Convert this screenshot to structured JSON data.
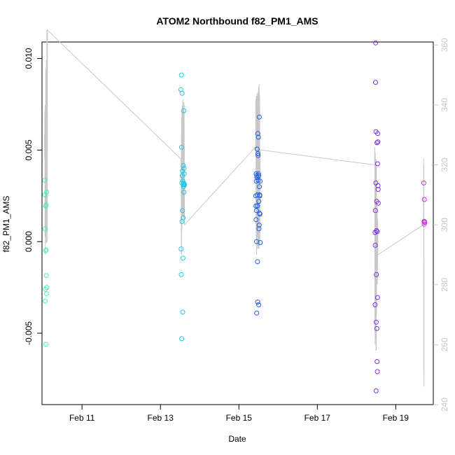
{
  "chart_data": {
    "type": "scatter",
    "title": "ATOM2 Northbound f82_PM1_AMS",
    "xlabel": "Date",
    "ylabel": "f82_PM1_AMS",
    "x_range_days": [
      "2024-02-09T23:30",
      "2024-02-19T23:00"
    ],
    "x_ticks": [
      {
        "date": "2024-02-11T00:00",
        "label": "Feb 11"
      },
      {
        "date": "2024-02-13T00:00",
        "label": "Feb 13"
      },
      {
        "date": "2024-02-15T00:00",
        "label": "Feb 15"
      },
      {
        "date": "2024-02-17T00:00",
        "label": "Feb 17"
      },
      {
        "date": "2024-02-19T00:00",
        "label": "Feb 19"
      }
    ],
    "ylim": [
      -0.0089,
      0.0109
    ],
    "y_ticks": [
      {
        "value": -0.005,
        "label": "-0.005"
      },
      {
        "value": 0.0,
        "label": "0.000"
      },
      {
        "value": 0.005,
        "label": "0.005"
      },
      {
        "value": 0.01,
        "label": "0.010"
      }
    ],
    "secondary_axis": {
      "ylim": [
        240,
        361
      ],
      "ticks": [
        {
          "value": 240,
          "label": "240"
        },
        {
          "value": 260,
          "label": "260"
        },
        {
          "value": 280,
          "label": "280"
        },
        {
          "value": 300,
          "label": "300"
        },
        {
          "value": 320,
          "label": "320"
        },
        {
          "value": 340,
          "label": "340"
        },
        {
          "value": 360,
          "label": "360"
        }
      ],
      "color": "#c8c8c8"
    },
    "grid": false,
    "series": [
      {
        "color": "#3ff5c0",
        "points": [
          [
            "2024-02-10T01:07",
            0.00335
          ],
          [
            "2024-02-10T01:12",
            0.00255
          ],
          [
            "2024-02-10T01:18",
            0.0007
          ],
          [
            "2024-02-10T01:25",
            -0.00325
          ],
          [
            "2024-02-10T01:32",
            -0.0026
          ],
          [
            "2024-02-10T01:39",
            -0.0005
          ],
          [
            "2024-02-10T01:45",
            0.00195
          ],
          [
            "2024-02-10T01:51",
            -0.0056
          ],
          [
            "2024-02-10T01:58",
            0.002
          ],
          [
            "2024-02-10T02:04",
            -0.00045
          ],
          [
            "2024-02-10T02:10",
            -0.00185
          ],
          [
            "2024-02-10T02:16",
            -0.00285
          ],
          [
            "2024-02-10T02:22",
            0.0027
          ],
          [
            "2024-02-10T02:28",
            -0.0025
          ]
        ]
      },
      {
        "color": "#1fc8e6",
        "points": [
          [
            "2024-02-13T12:30",
            0.0083
          ],
          [
            "2024-02-13T12:40",
            -0.0004
          ],
          [
            "2024-02-13T12:45",
            -0.0018
          ],
          [
            "2024-02-13T12:52",
            0.0091
          ],
          [
            "2024-02-13T12:57",
            0.00515
          ],
          [
            "2024-02-13T13:02",
            -0.0053
          ],
          [
            "2024-02-13T13:07",
            0.0032
          ],
          [
            "2024-02-13T13:12",
            0.0011
          ],
          [
            "2024-02-13T13:17",
            0.0081
          ],
          [
            "2024-02-13T13:22",
            0.0036
          ],
          [
            "2024-02-13T13:27",
            0.00385
          ],
          [
            "2024-02-13T13:32",
            0.0017
          ],
          [
            "2024-02-13T13:37",
            -0.00385
          ],
          [
            "2024-02-13T13:42",
            0.0033
          ],
          [
            "2024-02-13T13:47",
            -0.0009
          ],
          [
            "2024-02-13T13:52",
            0.0013
          ],
          [
            "2024-02-13T13:57",
            0.00415
          ],
          [
            "2024-02-13T14:02",
            0.0031
          ],
          [
            "2024-02-13T14:07",
            0.003
          ],
          [
            "2024-02-13T14:12",
            0.0032
          ],
          [
            "2024-02-13T14:17",
            0.00715
          ],
          [
            "2024-02-13T14:22",
            0.0027
          ],
          [
            "2024-02-13T14:27",
            0.004
          ],
          [
            "2024-02-13T14:32",
            0.0037
          ],
          [
            "2024-02-13T14:37",
            0.00315
          ],
          [
            "2024-02-13T14:42",
            0.0031
          ]
        ]
      },
      {
        "color": "#1f5ee6",
        "points": [
          [
            "2024-02-15T10:20",
            0.0025
          ],
          [
            "2024-02-15T10:25",
            0.00195
          ],
          [
            "2024-02-15T10:30",
            0.0012
          ],
          [
            "2024-02-15T10:35",
            0.0037
          ],
          [
            "2024-02-15T10:40",
            0.0033
          ],
          [
            "2024-02-15T10:45",
            0.0017
          ],
          [
            "2024-02-15T10:50",
            0.0
          ],
          [
            "2024-02-15T10:55",
            -0.0039
          ],
          [
            "2024-02-15T11:00",
            0.0036
          ],
          [
            "2024-02-15T11:05",
            0.0035
          ],
          [
            "2024-02-15T11:10",
            0.00505
          ],
          [
            "2024-02-15T11:15",
            0.00255
          ],
          [
            "2024-02-15T11:20",
            0.00195
          ],
          [
            "2024-02-15T11:25",
            -0.0011
          ],
          [
            "2024-02-15T11:30",
            -0.0033
          ],
          [
            "2024-02-15T11:35",
            0.0059
          ],
          [
            "2024-02-15T11:40",
            0.0048
          ],
          [
            "2024-02-15T11:45",
            0.0047
          ],
          [
            "2024-02-15T11:50",
            0.00335
          ],
          [
            "2024-02-15T11:55",
            0.0057
          ],
          [
            "2024-02-15T12:00",
            0.0037
          ],
          [
            "2024-02-15T12:05",
            -0.00345
          ],
          [
            "2024-02-15T12:10",
            0.0036
          ],
          [
            "2024-02-15T12:15",
            0.0022
          ],
          [
            "2024-02-15T12:20",
            0.0007
          ],
          [
            "2024-02-15T12:25",
            0.0009
          ],
          [
            "2024-02-15T12:30",
            0.0068
          ],
          [
            "2024-02-15T12:35",
            0.003
          ],
          [
            "2024-02-15T12:40",
            0.00155
          ],
          [
            "2024-02-15T12:45",
            0.00255
          ],
          [
            "2024-02-15T12:50",
            0.0025
          ],
          [
            "2024-02-15T12:55",
            0.0015
          ],
          [
            "2024-02-15T13:00",
            0.0033
          ],
          [
            "2024-02-15T13:05",
            -5e-05
          ]
        ]
      },
      {
        "color": "#7f2fe6",
        "points": [
          [
            "2024-02-18T11:20",
            0.0005
          ],
          [
            "2024-02-18T11:25",
            -0.00345
          ],
          [
            "2024-02-18T11:30",
            -0.0002
          ],
          [
            "2024-02-18T11:35",
            0.0017
          ],
          [
            "2024-02-18T11:40",
            0.0087
          ],
          [
            "2024-02-18T11:45",
            0.01085
          ],
          [
            "2024-02-18T11:50",
            0.0032
          ],
          [
            "2024-02-18T11:55",
            0.006
          ],
          [
            "2024-02-18T12:00",
            -0.00815
          ],
          [
            "2024-02-18T12:05",
            -0.0044
          ],
          [
            "2024-02-18T12:10",
            -0.0018
          ],
          [
            "2024-02-18T12:15",
            0.0006
          ],
          [
            "2024-02-18T12:20",
            0.0022
          ],
          [
            "2024-02-18T12:25",
            -0.00475
          ],
          [
            "2024-02-18T12:30",
            0.0054
          ],
          [
            "2024-02-18T12:35",
            -0.00655
          ],
          [
            "2024-02-18T12:40",
            0.00055
          ],
          [
            "2024-02-18T12:45",
            -0.0071
          ],
          [
            "2024-02-18T12:50",
            -0.00305
          ],
          [
            "2024-02-18T12:55",
            0.00425
          ],
          [
            "2024-02-18T13:00",
            0.0059
          ],
          [
            "2024-02-18T13:05",
            0.00545
          ],
          [
            "2024-02-18T13:10",
            0.00305
          ],
          [
            "2024-02-18T13:15",
            0.00285
          ],
          [
            "2024-02-18T13:20",
            0.0021
          ]
        ]
      },
      {
        "color": "#c832e6",
        "points": [
          [
            "2024-02-19T17:10",
            0.0032
          ],
          [
            "2024-02-19T17:20",
            0.0011
          ],
          [
            "2024-02-19T17:25",
            0.00095
          ],
          [
            "2024-02-19T17:30",
            0.0023
          ],
          [
            "2024-02-19T17:35",
            0.0011
          ],
          [
            "2024-02-19T17:40",
            0.00105
          ],
          [
            "2024-02-19T17:45",
            0.00105
          ]
        ]
      }
    ],
    "secondary_line": {
      "color": "#c8c8c8",
      "points": [
        [
          "2024-02-10T01:00",
          330
        ],
        [
          "2024-02-10T01:10",
          322
        ],
        [
          "2024-02-10T01:15",
          338
        ],
        [
          "2024-02-10T01:20",
          296
        ],
        [
          "2024-02-10T01:25",
          300
        ],
        [
          "2024-02-10T01:30",
          340
        ],
        [
          "2024-02-10T01:35",
          290
        ],
        [
          "2024-02-10T01:40",
          318
        ],
        [
          "2024-02-10T01:45",
          302
        ],
        [
          "2024-02-10T01:50",
          352
        ],
        [
          "2024-02-10T01:55",
          296
        ],
        [
          "2024-02-10T02:00",
          330
        ],
        [
          "2024-02-10T02:05",
          294
        ],
        [
          "2024-02-10T02:10",
          355
        ],
        [
          "2024-02-10T02:15",
          300
        ],
        [
          "2024-02-10T02:20",
          320
        ],
        [
          "2024-02-10T02:25",
          298
        ],
        [
          "2024-02-10T02:30",
          365
        ],
        [
          "2024-02-10T02:35",
          294
        ],
        [
          "2024-02-10T02:40",
          330
        ],
        [
          "2024-02-10T02:45",
          298
        ],
        [
          "2024-02-10T02:50",
          365
        ],
        [
          "2024-02-13T12:30",
          322
        ],
        [
          "2024-02-13T12:40",
          320
        ],
        [
          "2024-02-13T12:45",
          292
        ],
        [
          "2024-02-13T12:50",
          330
        ],
        [
          "2024-02-13T12:55",
          290
        ],
        [
          "2024-02-13T13:00",
          336
        ],
        [
          "2024-02-13T13:05",
          298
        ],
        [
          "2024-02-13T13:10",
          339
        ],
        [
          "2024-02-13T13:15",
          301
        ],
        [
          "2024-02-13T13:20",
          339
        ],
        [
          "2024-02-13T13:25",
          303
        ],
        [
          "2024-02-13T13:30",
          340
        ],
        [
          "2024-02-13T13:35",
          303
        ],
        [
          "2024-02-13T13:40",
          342
        ],
        [
          "2024-02-13T13:45",
          303
        ],
        [
          "2024-02-13T13:50",
          341
        ],
        [
          "2024-02-13T13:55",
          304
        ],
        [
          "2024-02-13T14:00",
          340
        ],
        [
          "2024-02-13T14:05",
          302
        ],
        [
          "2024-02-13T14:10",
          340
        ],
        [
          "2024-02-13T14:15",
          302
        ],
        [
          "2024-02-13T14:20",
          341
        ],
        [
          "2024-02-13T14:25",
          303
        ],
        [
          "2024-02-13T14:30",
          340
        ],
        [
          "2024-02-13T14:35",
          302
        ],
        [
          "2024-02-13T14:40",
          326
        ],
        [
          "2024-02-13T14:45",
          300
        ],
        [
          "2024-02-15T10:15",
          326
        ],
        [
          "2024-02-15T10:25",
          342
        ],
        [
          "2024-02-15T10:30",
          298
        ],
        [
          "2024-02-15T10:35",
          340
        ],
        [
          "2024-02-15T10:40",
          296
        ],
        [
          "2024-02-15T10:45",
          343
        ],
        [
          "2024-02-15T10:50",
          290
        ],
        [
          "2024-02-15T10:55",
          342
        ],
        [
          "2024-02-15T11:00",
          293
        ],
        [
          "2024-02-15T11:05",
          343
        ],
        [
          "2024-02-15T11:10",
          296
        ],
        [
          "2024-02-15T11:15",
          344
        ],
        [
          "2024-02-15T11:20",
          296
        ],
        [
          "2024-02-15T11:25",
          344
        ],
        [
          "2024-02-15T11:30",
          292
        ],
        [
          "2024-02-15T11:35",
          342
        ],
        [
          "2024-02-15T11:40",
          295
        ],
        [
          "2024-02-15T11:45",
          343
        ],
        [
          "2024-02-15T11:50",
          292
        ],
        [
          "2024-02-15T11:55",
          345
        ],
        [
          "2024-02-15T12:00",
          294
        ],
        [
          "2024-02-15T12:05",
          346
        ],
        [
          "2024-02-15T12:10",
          297
        ],
        [
          "2024-02-15T12:15",
          343
        ],
        [
          "2024-02-15T12:20",
          292
        ],
        [
          "2024-02-15T12:25",
          347
        ],
        [
          "2024-02-15T12:30",
          294
        ],
        [
          "2024-02-15T12:35",
          344
        ],
        [
          "2024-02-15T12:40",
          293
        ],
        [
          "2024-02-15T12:45",
          343
        ],
        [
          "2024-02-15T12:50",
          293
        ],
        [
          "2024-02-15T13:00",
          325
        ],
        [
          "2024-02-18T11:00",
          320
        ],
        [
          "2024-02-18T11:10",
          326
        ],
        [
          "2024-02-18T11:15",
          264
        ],
        [
          "2024-02-18T11:20",
          322
        ],
        [
          "2024-02-18T11:25",
          260
        ],
        [
          "2024-02-18T11:30",
          324
        ],
        [
          "2024-02-18T11:35",
          262
        ],
        [
          "2024-02-18T11:40",
          322
        ],
        [
          "2024-02-18T11:45",
          270
        ],
        [
          "2024-02-18T11:50",
          320
        ],
        [
          "2024-02-18T11:55",
          258
        ],
        [
          "2024-02-18T12:00",
          322
        ],
        [
          "2024-02-18T12:05",
          258
        ],
        [
          "2024-02-18T12:10",
          320
        ],
        [
          "2024-02-18T12:15",
          270
        ],
        [
          "2024-02-18T12:20",
          300
        ],
        [
          "2024-02-18T12:25",
          282
        ],
        [
          "2024-02-18T12:30",
          300
        ],
        [
          "2024-02-18T12:35",
          290
        ],
        [
          "2024-02-18T12:40",
          306
        ],
        [
          "2024-02-18T12:45",
          280
        ],
        [
          "2024-02-18T12:50",
          302
        ],
        [
          "2024-02-18T12:55",
          286
        ],
        [
          "2024-02-18T13:00",
          301
        ],
        [
          "2024-02-18T13:05",
          290
        ],
        [
          "2024-02-19T17:00",
          300
        ],
        [
          "2024-02-19T17:05",
          322
        ],
        [
          "2024-02-19T17:10",
          250
        ],
        [
          "2024-02-19T17:15",
          320
        ],
        [
          "2024-02-19T17:20",
          246
        ]
      ]
    }
  }
}
